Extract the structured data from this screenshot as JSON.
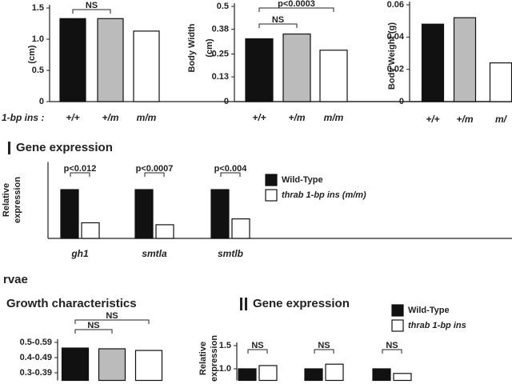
{
  "chart_data": [
    {
      "type": "bar",
      "y_label": "(cm)",
      "x_prefix": "1-bp ins :",
      "categories": [
        "+/+",
        "+/m",
        "m/m"
      ],
      "values": [
        1.33,
        1.33,
        1.13
      ],
      "colors": [
        "#111111",
        "#bbbbbb",
        "#ffffff"
      ],
      "ylim": [
        0,
        1.5
      ],
      "yticks": [
        {
          "value": 0,
          "label": "0"
        },
        {
          "value": 0.5,
          "label": "0.5"
        },
        {
          "value": 1,
          "label": "1.0"
        },
        {
          "value": 1.5,
          "label": "1.5"
        }
      ],
      "annotations": [
        "NS"
      ]
    },
    {
      "type": "bar",
      "y_label": "Body Width",
      "y_unit": "(cm)",
      "categories": [
        "+/+",
        "+/m",
        "m/m"
      ],
      "values": [
        0.33,
        0.355,
        0.27
      ],
      "colors": [
        "#111111",
        "#bbbbbb",
        "#ffffff"
      ],
      "ylim": [
        0,
        0.5
      ],
      "yticks": [
        0,
        0.13,
        0.25,
        0.38,
        0.5
      ],
      "annotations": [
        "NS",
        "p<0.0003"
      ]
    },
    {
      "type": "bar",
      "y_label": "Body Weight (g)",
      "categories": [
        "+/+",
        "+/m",
        "m/"
      ],
      "values": [
        0.048,
        0.052,
        0.024
      ],
      "colors": [
        "#111111",
        "#bbbbbb",
        "#ffffff"
      ],
      "ylim": [
        0,
        0.06
      ],
      "yticks": [
        0,
        0.02,
        0.04,
        0.06
      ],
      "annotations": []
    },
    {
      "type": "grouped_bar",
      "title": "Gene expression",
      "y_label": "Relative",
      "y_unit": "expression",
      "categories": [
        "gh1",
        "smtla",
        "smtlb"
      ],
      "series": [
        {
          "name": "Wild-Type",
          "color": "#111111",
          "values": [
            1.0,
            1.0,
            1.0
          ]
        },
        {
          "name": "thrab 1-bp ins (m/m)",
          "color": "#ffffff",
          "values": [
            0.32,
            0.28,
            0.4
          ]
        }
      ],
      "ylim": [
        0,
        1.5
      ],
      "yticks": [],
      "annotations": [
        "p<0.012",
        "p<0.0007",
        "p<0.004"
      ]
    },
    {
      "type": "bar",
      "section_label": "rvae",
      "title": "Growth characteristics",
      "categories": [
        null,
        null,
        null
      ],
      "values": [
        0.463,
        0.458,
        0.447
      ],
      "colors": [
        "#111111",
        "#bbbbbb",
        "#ffffff"
      ],
      "ylim": [
        0.25,
        0.5
      ],
      "yticks": [
        {
          "value": 0.5,
          "label": "0.5-0.59"
        },
        {
          "value": 0.4,
          "label": "0.4-0.49"
        },
        {
          "value": 0.3,
          "label": "0.3-0.39"
        }
      ],
      "annotations": [
        "NS",
        "NS"
      ]
    },
    {
      "type": "grouped_bar",
      "title": "Gene expression",
      "y_label": "Relative",
      "y_unit": "expression",
      "categories": [
        null,
        null,
        null
      ],
      "series": [
        {
          "name": "Wild-Type",
          "color": "#111111",
          "values": [
            1.0,
            1.0,
            1.0
          ]
        },
        {
          "name": "thrab 1-bp ins",
          "color": "#ffffff",
          "values": [
            1.07,
            1.1,
            0.9
          ]
        }
      ],
      "ylim": [
        0.75,
        1.5
      ],
      "yticks": [
        {
          "value": 1,
          "label": "1.0"
        },
        {
          "value": 1.5,
          "label": "1.5"
        }
      ],
      "annotations": [
        "NS",
        "NS",
        "NS"
      ]
    }
  ]
}
